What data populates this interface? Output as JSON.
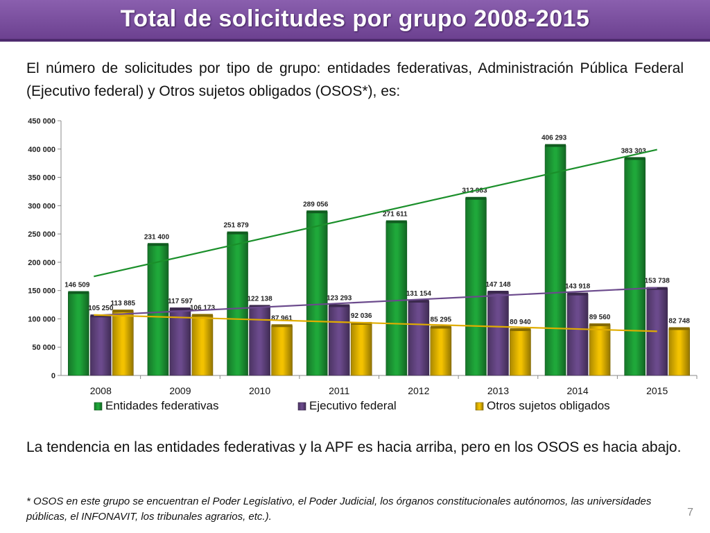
{
  "slide": {
    "title": "Total de solicitudes por grupo 2008-2015",
    "intro": "El número de solicitudes por tipo de grupo: entidades federativas, Administración Pública Federal (Ejecutivo federal) y Otros sujetos obligados (OSOS*), es:",
    "conclusion": "La tendencia en las entidades federativas y la APF es hacia arriba, pero en los OSOS es hacia abajo.",
    "footnote": "* OSOS en este grupo se encuentran el Poder Legislativo, el Poder Judicial, los órganos constitucionales autónomos, las universidades públicas, el INFONAVIT, los tribunales agrarios, etc.).",
    "page_number": "7"
  },
  "chart_data": {
    "type": "bar",
    "categories": [
      "2008",
      "2009",
      "2010",
      "2011",
      "2012",
      "2013",
      "2014",
      "2015"
    ],
    "series": [
      {
        "name": "Entidades federativas",
        "color": "#1fa83a",
        "values": [
          146509,
          231400,
          251879,
          289056,
          271611,
          312983,
          406293,
          383303
        ],
        "labels": [
          "146 509",
          "231 400",
          "251 879",
          "289 056",
          "271 611",
          "312 983",
          "406 293",
          "383 303"
        ]
      },
      {
        "name": "Ejecutivo federal",
        "color": "#6b4a8c",
        "values": [
          105250,
          117597,
          122138,
          123293,
          131154,
          147148,
          143918,
          153738
        ],
        "labels": [
          "105 250",
          "117 597",
          "122 138",
          "123 293",
          "131 154",
          "147 148",
          "143 918",
          "153 738"
        ]
      },
      {
        "name": "Otros sujetos obligados",
        "color": "#f3c200",
        "values": [
          113885,
          106173,
          87961,
          92036,
          85295,
          80940,
          89560,
          82748
        ],
        "labels": [
          "113 885",
          "106 173",
          "87 961",
          "92 036",
          "85 295",
          "80 940",
          "89 560",
          "82 748"
        ]
      }
    ],
    "trendlines": [
      {
        "series": "Entidades federativas",
        "color": "#1a8f2a",
        "from": 175000,
        "to": 399000
      },
      {
        "series": "Ejecutivo federal",
        "color": "#6b4a8c",
        "from": 106000,
        "to": 155000
      },
      {
        "series": "Otros sujetos obligados",
        "color": "#e0ad00",
        "from": 107000,
        "to": 78000
      }
    ],
    "ylim": [
      0,
      450000
    ],
    "yticks": [
      0,
      50000,
      100000,
      150000,
      200000,
      250000,
      300000,
      350000,
      400000,
      450000
    ],
    "ytick_labels": [
      "0",
      "50 000",
      "100 000",
      "150 000",
      "200 000",
      "250 000",
      "300 000",
      "350 000",
      "400 000",
      "450 000"
    ],
    "grid": false,
    "legend": "bottom"
  }
}
